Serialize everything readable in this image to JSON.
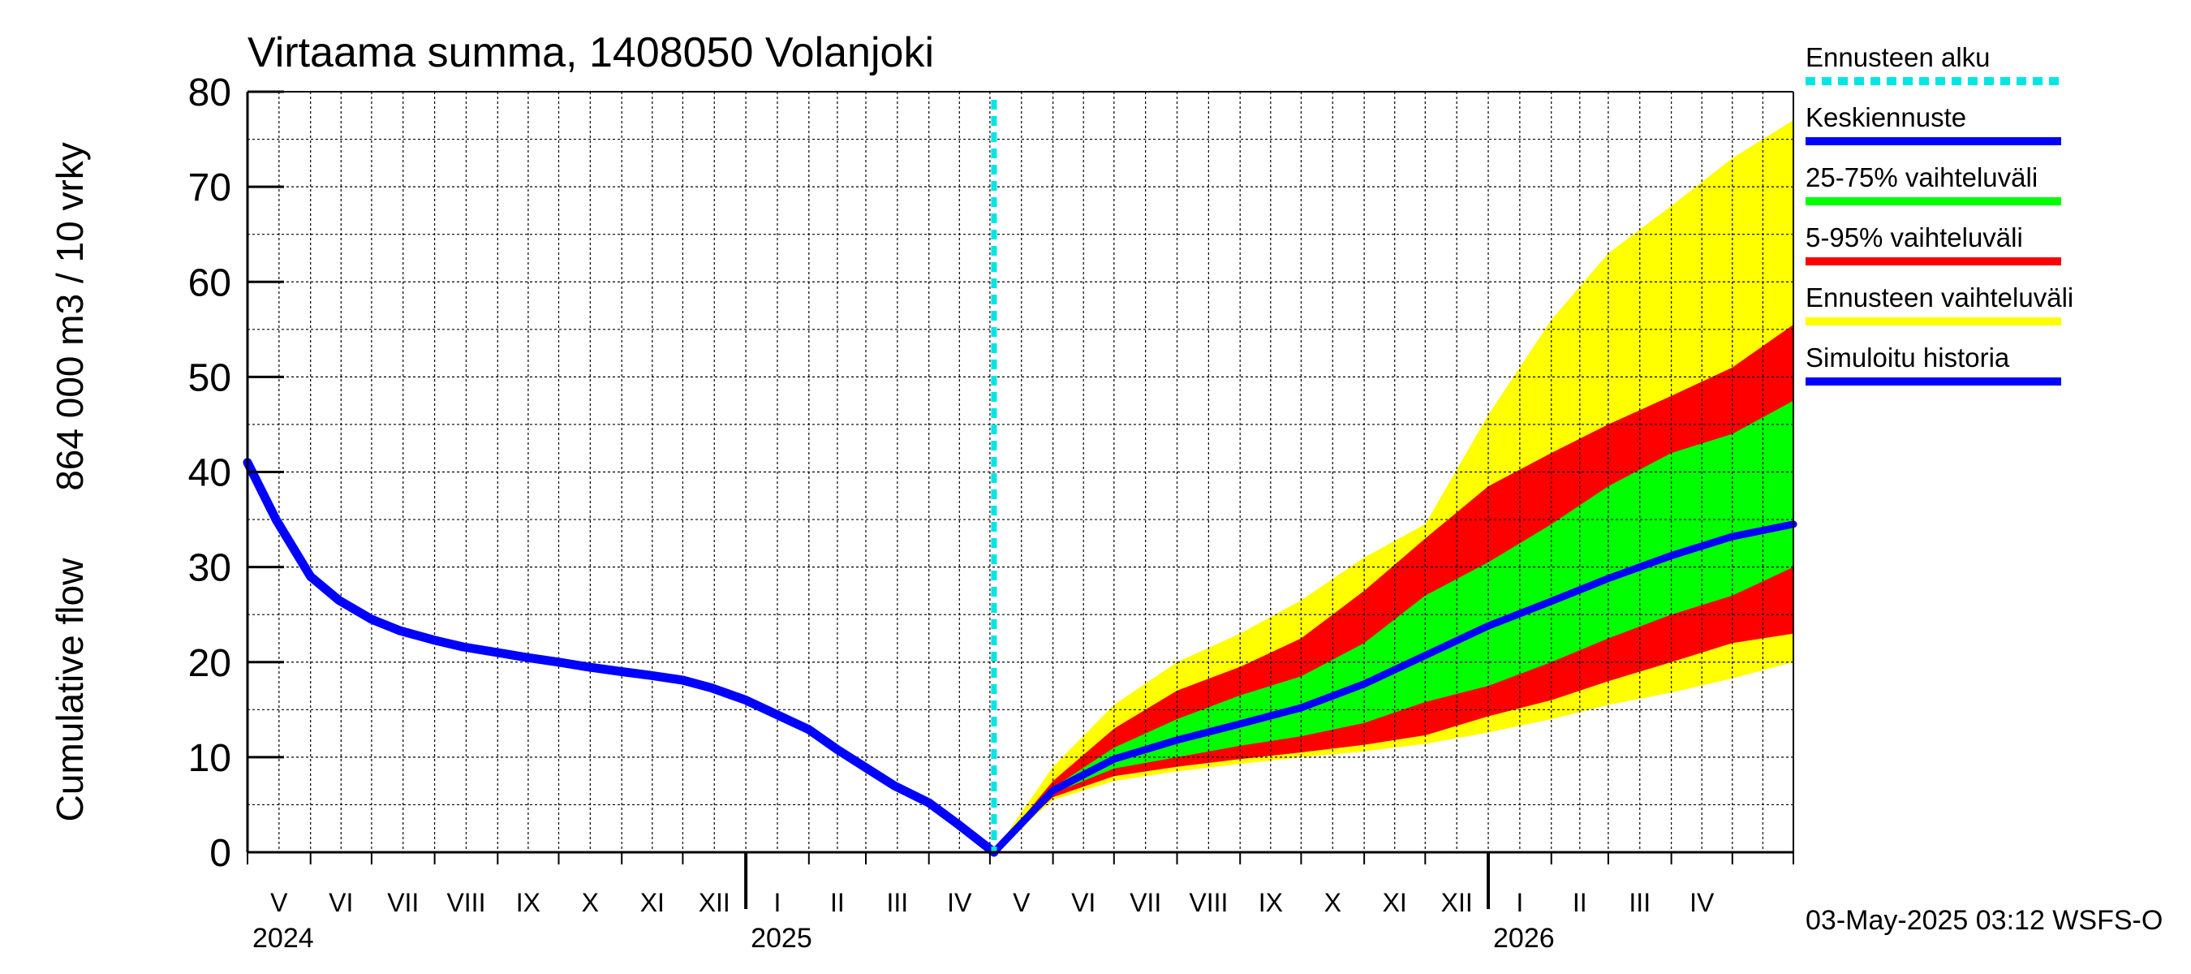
{
  "chart_data": {
    "type": "area",
    "title": "Virtaama summa, 1408050 Volanjoki",
    "ylabel_left": "Cumulative flow",
    "ylabel_right": "864 000 m3 / 10 vrky",
    "ylim": [
      0,
      80
    ],
    "yticks": [
      0,
      10,
      20,
      30,
      40,
      50,
      60,
      70,
      80
    ],
    "x_start": "2024-05-01",
    "x_end": "2026-05-31",
    "forecast_start": "2025-05-03",
    "months": [
      {
        "label": "V",
        "start": "2024-05-01"
      },
      {
        "label": "VI",
        "start": "2024-06-01"
      },
      {
        "label": "VII",
        "start": "2024-07-01"
      },
      {
        "label": "VIII",
        "start": "2024-08-01"
      },
      {
        "label": "IX",
        "start": "2024-09-01"
      },
      {
        "label": "X",
        "start": "2024-10-01"
      },
      {
        "label": "XI",
        "start": "2024-11-01"
      },
      {
        "label": "XII",
        "start": "2024-12-01"
      },
      {
        "label": "I",
        "start": "2025-01-01"
      },
      {
        "label": "II",
        "start": "2025-02-01"
      },
      {
        "label": "III",
        "start": "2025-03-01"
      },
      {
        "label": "IV",
        "start": "2025-04-01"
      },
      {
        "label": "V",
        "start": "2025-05-01"
      },
      {
        "label": "VI",
        "start": "2025-06-01"
      },
      {
        "label": "VII",
        "start": "2025-07-01"
      },
      {
        "label": "VIII",
        "start": "2025-08-01"
      },
      {
        "label": "IX",
        "start": "2025-09-01"
      },
      {
        "label": "X",
        "start": "2025-10-01"
      },
      {
        "label": "XI",
        "start": "2025-11-01"
      },
      {
        "label": "XII",
        "start": "2025-12-01"
      },
      {
        "label": "I",
        "start": "2026-01-01"
      },
      {
        "label": "II",
        "start": "2026-02-01"
      },
      {
        "label": "III",
        "start": "2026-03-01"
      },
      {
        "label": "IV",
        "start": "2026-04-01"
      },
      {
        "label": "",
        "start": "2026-05-01"
      }
    ],
    "years": [
      {
        "label": "2024",
        "date": "2024-05-01"
      },
      {
        "label": "2025",
        "date": "2025-01-01"
      },
      {
        "label": "2026",
        "date": "2026-01-01"
      }
    ],
    "history": {
      "name": "Simuloitu historia",
      "color": "#0000ff",
      "points": [
        [
          "2024-05-01",
          41
        ],
        [
          "2024-05-15",
          35
        ],
        [
          "2024-06-01",
          29
        ],
        [
          "2024-06-15",
          26.5
        ],
        [
          "2024-07-01",
          24.5
        ],
        [
          "2024-07-15",
          23.3
        ],
        [
          "2024-08-01",
          22.3
        ],
        [
          "2024-08-15",
          21.6
        ],
        [
          "2024-09-01",
          21.0
        ],
        [
          "2024-09-15",
          20.5
        ],
        [
          "2024-10-01",
          20.0
        ],
        [
          "2024-10-15",
          19.5
        ],
        [
          "2024-11-01",
          19.0
        ],
        [
          "2024-11-15",
          18.6
        ],
        [
          "2024-12-01",
          18.1
        ],
        [
          "2024-12-15",
          17.3
        ],
        [
          "2025-01-01",
          16.0
        ],
        [
          "2025-01-15",
          14.6
        ],
        [
          "2025-02-01",
          12.9
        ],
        [
          "2025-02-15",
          10.8
        ],
        [
          "2025-03-01",
          8.9
        ],
        [
          "2025-03-15",
          7.0
        ],
        [
          "2025-04-01",
          5.2
        ],
        [
          "2025-04-15",
          3.0
        ],
        [
          "2025-05-03",
          0.0
        ]
      ]
    },
    "forecast_dates": [
      "2025-05-03",
      "2025-06-01",
      "2025-07-01",
      "2025-08-01",
      "2025-09-01",
      "2025-10-01",
      "2025-11-01",
      "2025-12-01",
      "2026-01-01",
      "2026-02-01",
      "2026-03-01",
      "2026-04-01",
      "2026-05-01",
      "2026-05-31"
    ],
    "bands": [
      {
        "name": "Ennusteen vaihteluväli",
        "color": "#ffff00",
        "upper": [
          0,
          9,
          15.5,
          20,
          23,
          26.5,
          31,
          34.5,
          46,
          56,
          63,
          68,
          73,
          77
        ],
        "lower": [
          0,
          5.5,
          7.5,
          8.5,
          9.3,
          10,
          10.6,
          11.4,
          12.6,
          14,
          15.5,
          16.8,
          18.3,
          20
        ]
      },
      {
        "name": "5-95% vaihteluväli",
        "color": "#ff0000",
        "upper": [
          0,
          7.5,
          13,
          17,
          19.5,
          22.5,
          27.5,
          33,
          38.5,
          42,
          45,
          48,
          51,
          55.5
        ],
        "lower": [
          0,
          5.8,
          8,
          9,
          9.8,
          10.5,
          11.3,
          12.3,
          14.3,
          16,
          18,
          20,
          22,
          23
        ]
      },
      {
        "name": "25-75% vaihteluväli",
        "color": "#00ff00",
        "upper": [
          0,
          6.8,
          11,
          14,
          16.5,
          18.5,
          22,
          27,
          30.5,
          34.5,
          38.5,
          42,
          44,
          47.5
        ],
        "lower": [
          0,
          6.2,
          8.8,
          10,
          11.2,
          12.2,
          13.6,
          15.8,
          17.5,
          20,
          22.5,
          25,
          27,
          30
        ]
      }
    ],
    "median": {
      "name": "Keskiennuste",
      "color": "#0000ff",
      "values": [
        0,
        6.5,
        9.8,
        11.8,
        13.5,
        15.2,
        17.7,
        20.7,
        23.8,
        26.4,
        28.8,
        31.2,
        33.2,
        34.5
      ]
    },
    "legend": [
      {
        "label": "Ennusteen alku",
        "color": "#00e5e5",
        "style": "dashed"
      },
      {
        "label": "Keskiennuste",
        "color": "#0000ff",
        "style": "solid"
      },
      {
        "label": "25-75% vaihteluväli",
        "color": "#00ff00",
        "style": "solid"
      },
      {
        "label": "5-95% vaihteluväli",
        "color": "#ff0000",
        "style": "solid"
      },
      {
        "label": "Ennusteen vaihteluväli",
        "color": "#ffff00",
        "style": "solid"
      },
      {
        "label": "Simuloitu historia",
        "color": "#0000ff",
        "style": "solid"
      }
    ],
    "legend_position": "right",
    "grid": true,
    "footer": "03-May-2025 03:12 WSFS-O"
  }
}
